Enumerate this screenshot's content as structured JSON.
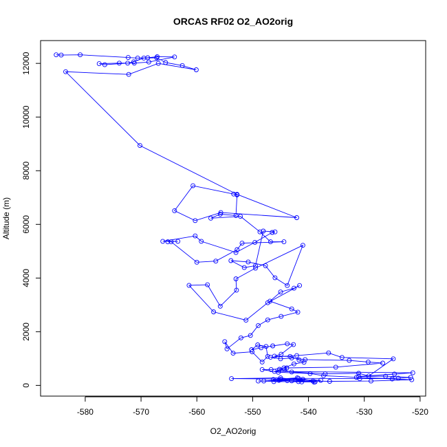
{
  "chart_data": {
    "type": "scatter",
    "title": "ORCAS RF02 O2_AO2orig",
    "xlabel": "O2_AO2orig",
    "ylabel": "Altitude (m)",
    "xlim": [
      -588,
      -519
    ],
    "ylim": [
      -400,
      12850
    ],
    "xticks": [
      -580,
      -570,
      -560,
      -550,
      -540,
      -530,
      -520
    ],
    "yticks": [
      0,
      2000,
      4000,
      6000,
      8000,
      10000,
      12000
    ],
    "xtick_labels": [
      "-580",
      "-570",
      "-560",
      "-550",
      "-540",
      "-530",
      "-520"
    ],
    "ytick_labels": [
      "0",
      "2000",
      "4000",
      "6000",
      "8000",
      "10000",
      "12000"
    ],
    "grid": false,
    "legend": "none",
    "colors": {
      "series": "#0000ff",
      "axis": "#000000"
    },
    "series": [
      {
        "style": "points-and-lines",
        "x": [
          -585.2,
          -584.3,
          -580.9,
          -572.3,
          -570.6,
          -568.8,
          -567.1,
          -564.0,
          -568.6,
          -571.2,
          -573.9,
          -577.5,
          -576.5,
          -572.4,
          -571.3,
          -569.5,
          -567.2,
          -565.6,
          -562.6,
          -560.1,
          -566.9,
          -572.2,
          -583.5,
          -570.2,
          -552.8,
          -542.1,
          -555.7,
          -560.3,
          -564.0,
          -560.7,
          -553.4,
          -552.8,
          -553.0,
          -555.8,
          -557.5,
          -552.2,
          -548.7,
          -546.8,
          -544.4,
          -551.9,
          -552.8,
          -556.6,
          -560.0,
          -564.6,
          -565.2,
          -563.4,
          -566.1,
          -560.3,
          -559.2,
          -553.0,
          -549.6,
          -546.5,
          -546.0,
          -548.1,
          -549.5,
          -551.5,
          -553.9,
          -550.8,
          -547.7,
          -546.0,
          -543.8,
          -541.0,
          -549.5,
          -553.0,
          -552.9,
          -555.8,
          -558.1,
          -561.4,
          -557.0,
          -551.2,
          -547.3,
          -541.6,
          -542.6,
          -545.0,
          -546.9,
          -543.0,
          -541.9,
          -544.9,
          -547.3,
          -549.0,
          -550.4,
          -552.1,
          -554.6,
          -555.0,
          -553.5,
          -550.1,
          -548.3,
          -547.3,
          -547.6,
          -549.1,
          -550.2,
          -548.5,
          -546.4,
          -543.8,
          -542.7,
          -544.9,
          -546.1,
          -543.3,
          -541.7,
          -540.8,
          -542.6,
          -544.4,
          -545.2,
          -543.0,
          -537.0,
          -531.0,
          -529.2,
          -524.8,
          -534.0,
          -536.4,
          -542.1,
          -546.8,
          -545.0,
          -543.0,
          -540.6,
          -532.7,
          -529.3,
          -526.7,
          -535.1,
          -543.9,
          -546.7,
          -548.3,
          -545.4,
          -539.7,
          -537.3,
          -531.4,
          -525.0,
          -521.5,
          -528.8,
          -536.2,
          -543.8,
          -549.0,
          -541.2,
          -538.8,
          -543.0,
          -546.3,
          -542.0,
          -539.2,
          -541.8,
          -546.2,
          -545.3,
          -541.0,
          -553.8,
          -545.0,
          -539.0,
          -537.8,
          -545.0,
          -548.0,
          -541.8,
          -530.8,
          -523.9,
          -521.7,
          -526.2,
          -531.0,
          -524.6,
          -521.3,
          -546.1,
          -544.3
        ],
        "y": [
          12320,
          12310,
          12320,
          12220,
          12200,
          12210,
          12250,
          12240,
          12050,
          12010,
          12010,
          11990,
          11950,
          12010,
          12060,
          12200,
          12210,
          12030,
          11920,
          11760,
          12000,
          11590,
          11690,
          8940,
          7120,
          6250,
          6440,
          6140,
          6510,
          7440,
          7130,
          7100,
          6330,
          6380,
          6230,
          6300,
          5720,
          5350,
          5350,
          5300,
          5060,
          4630,
          4590,
          5350,
          5350,
          5370,
          5370,
          5570,
          5370,
          4950,
          5330,
          5700,
          5720,
          5750,
          4460,
          4390,
          4650,
          4600,
          4460,
          4010,
          3720,
          5220,
          4370,
          3970,
          3550,
          2950,
          3750,
          3730,
          2740,
          2430,
          3080,
          3720,
          3620,
          3480,
          3140,
          2850,
          2730,
          2570,
          2440,
          2230,
          1860,
          1770,
          1360,
          1630,
          1200,
          1250,
          870,
          1080,
          1450,
          1510,
          1330,
          1400,
          1470,
          1550,
          1520,
          1160,
          1090,
          1080,
          950,
          860,
          800,
          650,
          600,
          500,
          430,
          450,
          350,
          990,
          1040,
          1210,
          1110,
          1050,
          990,
          1020,
          960,
          930,
          870,
          830,
          680,
          650,
          590,
          590,
          490,
          440,
          360,
          300,
          240,
          210,
          160,
          150,
          180,
          160,
          130,
          130,
          170,
          220,
          280,
          160,
          140,
          140,
          190,
          230,
          250,
          280,
          120,
          190,
          220,
          160,
          260,
          250,
          270,
          300,
          340,
          330,
          420,
          470,
          520,
          590
        ]
      }
    ]
  }
}
